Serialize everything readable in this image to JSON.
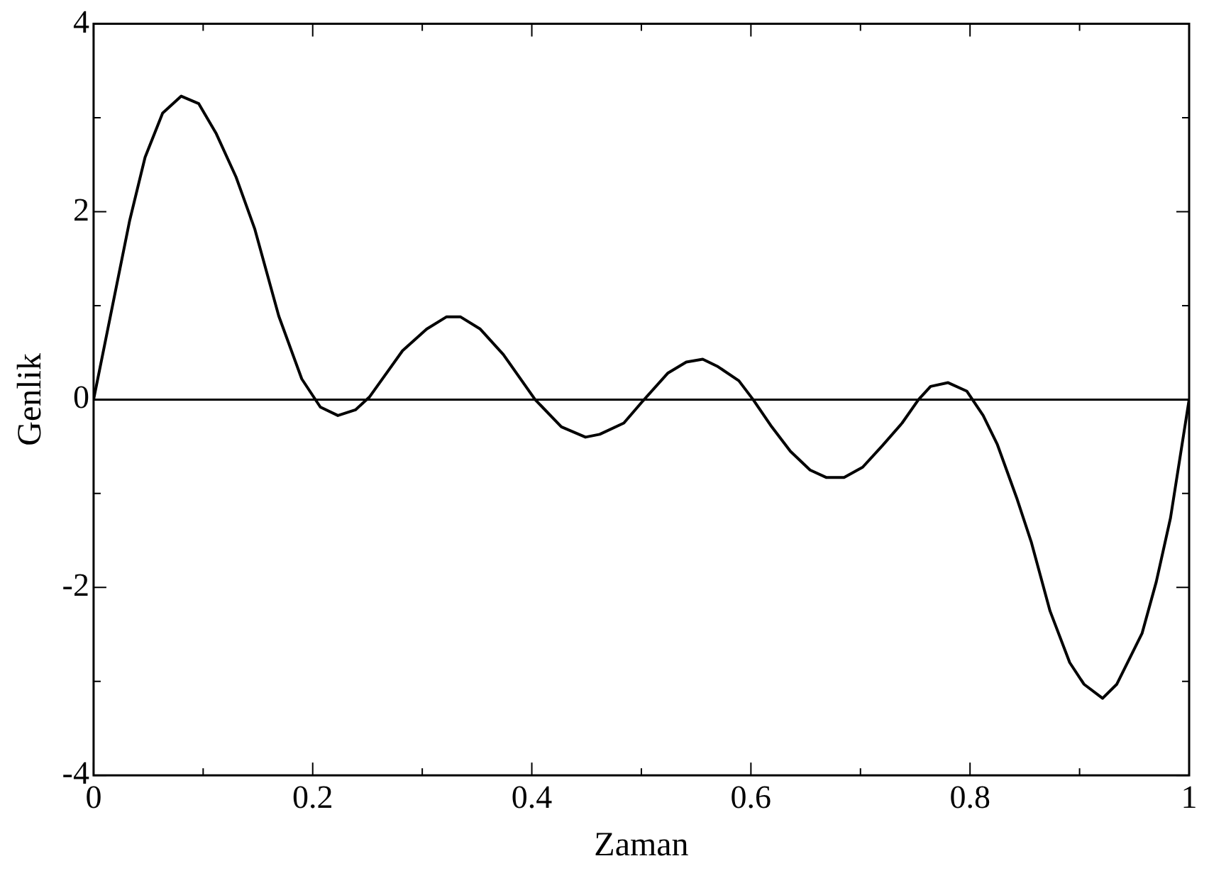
{
  "chart_data": {
    "type": "line",
    "xlabel": "Zaman",
    "ylabel": "Genlik",
    "x": [
      0,
      0.033,
      0.047,
      0.063,
      0.08,
      0.096,
      0.112,
      0.13,
      0.147,
      0.169,
      0.19,
      0.207,
      0.223,
      0.239,
      0.252,
      0.282,
      0.304,
      0.322,
      0.335,
      0.353,
      0.374,
      0.403,
      0.427,
      0.449,
      0.462,
      0.484,
      0.501,
      0.524,
      0.541,
      0.556,
      0.57,
      0.589,
      0.602,
      0.619,
      0.636,
      0.654,
      0.669,
      0.685,
      0.702,
      0.72,
      0.738,
      0.753,
      0.764,
      0.78,
      0.797,
      0.812,
      0.825,
      0.843,
      0.856,
      0.873,
      0.891,
      0.904,
      0.921,
      0.934,
      0.957,
      0.97,
      0.983,
      1
    ],
    "series": [
      {
        "color": "#000000",
        "values": [
          0,
          1.91,
          2.58,
          3.05,
          3.23,
          3.15,
          2.83,
          2.37,
          1.82,
          0.89,
          0.22,
          -0.08,
          -0.17,
          -0.11,
          0.03,
          0.52,
          0.75,
          0.88,
          0.88,
          0.75,
          0.48,
          0,
          -0.29,
          -0.4,
          -0.37,
          -0.25,
          -0.02,
          0.28,
          0.4,
          0.43,
          0.35,
          0.2,
          0,
          -0.29,
          -0.55,
          -0.75,
          -0.83,
          -0.83,
          -0.72,
          -0.49,
          -0.25,
          0,
          0.14,
          0.18,
          0.09,
          -0.17,
          -0.48,
          -1.06,
          -1.52,
          -2.25,
          -2.8,
          -3.03,
          -3.18,
          -3.03,
          -2.49,
          -1.94,
          -1.26,
          0
        ]
      }
    ],
    "xlim": [
      0,
      1
    ],
    "ylim": [
      -4,
      4
    ],
    "xticks": [
      0,
      {
        "value": 0.1,
        "label": null
      },
      0.2,
      {
        "value": 0.3,
        "label": null
      },
      0.4,
      {
        "value": 0.5,
        "label": null
      },
      0.6,
      {
        "value": 0.7,
        "label": null
      },
      0.8,
      {
        "value": 0.9,
        "label": null
      },
      1
    ],
    "yticks": [
      -4,
      {
        "value": -3,
        "label": null
      },
      -2,
      {
        "value": -1,
        "label": null
      },
      0,
      {
        "value": 1,
        "label": null
      },
      2,
      {
        "value": 3,
        "label": null
      },
      4
    ],
    "ref_lines": [
      {
        "axis": "y",
        "value": 0,
        "color": "#000000"
      }
    ],
    "grid": false,
    "legend": false,
    "marker": "none",
    "line_style": "solid"
  }
}
